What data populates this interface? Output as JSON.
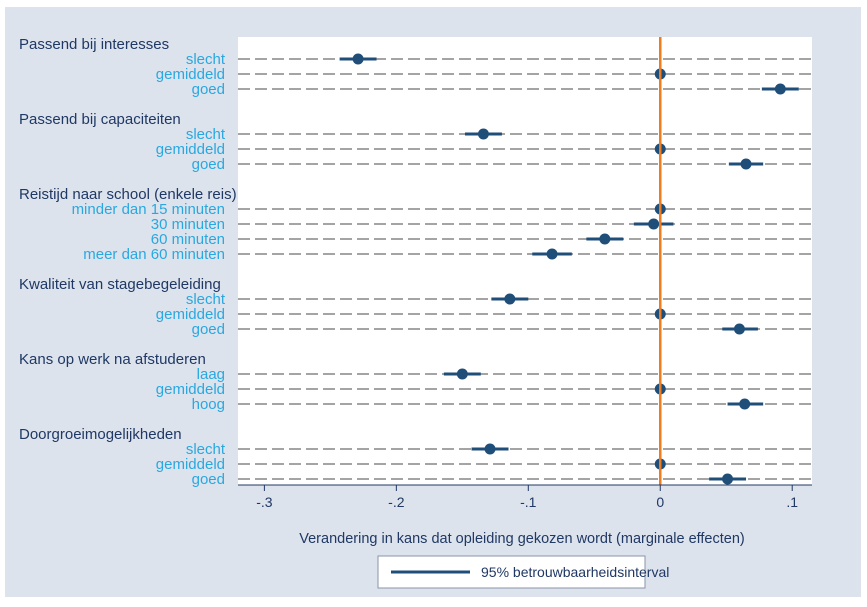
{
  "chart_data": {
    "type": "scatter",
    "xlabel": "Verandering in kans dat opleiding gekozen wordt (marginale effecten)",
    "xlim": [
      -0.32,
      0.115
    ],
    "xticks": [
      -0.3,
      -0.2,
      -0.1,
      0,
      0.1
    ],
    "xtick_labels": [
      "-.3",
      "-.2",
      "-.1",
      "0",
      ".1"
    ],
    "reference_line": 0,
    "grid": "dashed horizontal",
    "legend": {
      "label": "95% betrouwbaarheidsinterval",
      "position": "bottom"
    },
    "groups": [
      {
        "title": "Passend bij interesses",
        "items": [
          {
            "label": "slecht",
            "value": -0.229,
            "ci": [
              -0.243,
              -0.215
            ]
          },
          {
            "label": "gemiddeld",
            "value": 0,
            "ci": [
              0,
              0
            ]
          },
          {
            "label": "goed",
            "value": 0.091,
            "ci": [
              0.077,
              0.105
            ]
          }
        ]
      },
      {
        "title": "Passend bij capaciteiten",
        "items": [
          {
            "label": "slecht",
            "value": -0.134,
            "ci": [
              -0.148,
              -0.12
            ]
          },
          {
            "label": "gemiddeld",
            "value": 0,
            "ci": [
              0,
              0
            ]
          },
          {
            "label": "goed",
            "value": 0.065,
            "ci": [
              0.052,
              0.078
            ]
          }
        ]
      },
      {
        "title": "Reistijd naar school (enkele reis)",
        "items": [
          {
            "label": "minder dan 15 minuten",
            "value": 0,
            "ci": [
              0,
              0
            ]
          },
          {
            "label": "30 minuten",
            "value": -0.005,
            "ci": [
              -0.02,
              0.01
            ]
          },
          {
            "label": "60 minuten",
            "value": -0.042,
            "ci": [
              -0.056,
              -0.028
            ]
          },
          {
            "label": "meer dan 60 minuten",
            "value": -0.082,
            "ci": [
              -0.097,
              -0.067
            ]
          }
        ]
      },
      {
        "title": "Kwaliteit van stagebegeleiding",
        "items": [
          {
            "label": "slecht",
            "value": -0.114,
            "ci": [
              -0.128,
              -0.1
            ]
          },
          {
            "label": "gemiddeld",
            "value": 0,
            "ci": [
              0,
              0
            ]
          },
          {
            "label": "goed",
            "value": 0.06,
            "ci": [
              0.047,
              0.074
            ]
          }
        ]
      },
      {
        "title": "Kans op werk na afstuderen",
        "items": [
          {
            "label": "laag",
            "value": -0.15,
            "ci": [
              -0.164,
              -0.136
            ]
          },
          {
            "label": "gemiddeld",
            "value": 0,
            "ci": [
              0,
              0
            ]
          },
          {
            "label": "hoog",
            "value": 0.064,
            "ci": [
              0.051,
              0.078
            ]
          }
        ]
      },
      {
        "title": "Doorgroeimogelijkheden",
        "items": [
          {
            "label": "slecht",
            "value": -0.129,
            "ci": [
              -0.143,
              -0.115
            ]
          },
          {
            "label": "gemiddeld",
            "value": 0,
            "ci": [
              0,
              0
            ]
          },
          {
            "label": "goed",
            "value": 0.051,
            "ci": [
              0.037,
              0.065
            ]
          }
        ]
      }
    ]
  },
  "colors": {
    "background": "#dde3ed",
    "plot_area": "#ffffff",
    "marker": "#1f4e79",
    "reference_line": "#f07c1e",
    "group_label": "#1f3864",
    "level_label": "#29a8e0",
    "grid": "#4a4a4a"
  }
}
